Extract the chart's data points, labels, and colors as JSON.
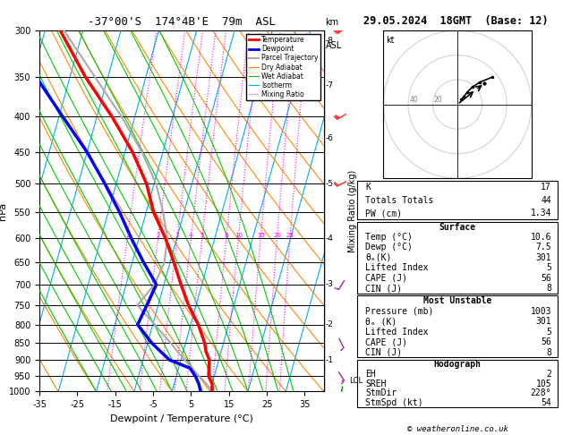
{
  "title_left": "-37°00'S  174°4B'E  79m  ASL",
  "title_right": "29.05.2024  18GMT  (Base: 12)",
  "xlabel": "Dewpoint / Temperature (°C)",
  "ylabel_left": "hPa",
  "bg_color": "#ffffff",
  "temp_color": "#ff0000",
  "dewp_color": "#0000ff",
  "parcel_color": "#aaaaaa",
  "dry_adiabat_color": "#ff8800",
  "wet_adiabat_color": "#00cc00",
  "isotherm_color": "#00aaff",
  "mixing_ratio_color": "#ff00ff",
  "pressure_levels": [
    300,
    350,
    400,
    450,
    500,
    550,
    600,
    650,
    700,
    750,
    800,
    850,
    900,
    950,
    1000
  ],
  "temp_data": [
    [
      1000,
      10.6
    ],
    [
      975,
      10.0
    ],
    [
      950,
      8.5
    ],
    [
      925,
      8.0
    ],
    [
      900,
      7.5
    ],
    [
      875,
      6.0
    ],
    [
      850,
      5.0
    ],
    [
      800,
      2.0
    ],
    [
      750,
      -2.0
    ],
    [
      700,
      -5.5
    ],
    [
      650,
      -9.0
    ],
    [
      600,
      -13.0
    ],
    [
      550,
      -18.0
    ],
    [
      500,
      -22.0
    ],
    [
      450,
      -28.0
    ],
    [
      400,
      -36.0
    ],
    [
      350,
      -46.0
    ],
    [
      300,
      -56.0
    ]
  ],
  "dewp_data": [
    [
      1000,
      7.5
    ],
    [
      975,
      6.5
    ],
    [
      950,
      5.0
    ],
    [
      925,
      3.0
    ],
    [
      900,
      -3.0
    ],
    [
      875,
      -6.0
    ],
    [
      850,
      -9.0
    ],
    [
      800,
      -14.0
    ],
    [
      750,
      -13.0
    ],
    [
      700,
      -12.0
    ],
    [
      650,
      -17.0
    ],
    [
      600,
      -22.0
    ],
    [
      550,
      -27.0
    ],
    [
      500,
      -33.0
    ],
    [
      450,
      -40.0
    ],
    [
      400,
      -49.0
    ],
    [
      350,
      -59.0
    ],
    [
      300,
      -70.0
    ]
  ],
  "parcel_data": [
    [
      1000,
      10.6
    ],
    [
      975,
      8.5
    ],
    [
      965,
      7.5
    ],
    [
      950,
      6.0
    ],
    [
      925,
      3.5
    ],
    [
      900,
      1.0
    ],
    [
      875,
      -1.5
    ],
    [
      850,
      -4.0
    ],
    [
      800,
      -9.5
    ],
    [
      750,
      -15.5
    ],
    [
      700,
      -12.5
    ],
    [
      650,
      -11.5
    ],
    [
      600,
      -12.5
    ],
    [
      550,
      -15.5
    ],
    [
      500,
      -19.5
    ],
    [
      450,
      -25.5
    ],
    [
      400,
      -33.5
    ],
    [
      350,
      -43.5
    ],
    [
      300,
      -55.0
    ]
  ],
  "lcl_pressure": 965,
  "p_min": 300,
  "p_max": 1000,
  "xmin": -35,
  "xmax": 40,
  "skew_factor": 22,
  "isotherms": [
    -60,
    -50,
    -40,
    -30,
    -20,
    -10,
    0,
    10,
    20,
    30,
    40
  ],
  "dry_adiabats_theta": [
    -30,
    -20,
    -10,
    0,
    10,
    20,
    30,
    40,
    50,
    60,
    70,
    80,
    90,
    100,
    110,
    120
  ],
  "wet_adiabat_starts": [
    -20,
    -16,
    -12,
    -8,
    -4,
    0,
    4,
    8,
    12,
    16,
    20,
    24,
    28,
    32
  ],
  "mixing_ratios": [
    1,
    2,
    3,
    4,
    5,
    8,
    10,
    15,
    20,
    25
  ],
  "km_ticks": [
    1,
    2,
    3,
    4,
    5,
    6,
    7,
    8
  ],
  "km_pressures": [
    900,
    800,
    700,
    600,
    500,
    430,
    360,
    310
  ],
  "wind_barbs": [
    {
      "pressure": 300,
      "u": 30,
      "v": 20,
      "color": "#ff4444"
    },
    {
      "pressure": 400,
      "u": 25,
      "v": 15,
      "color": "#ff4444"
    },
    {
      "pressure": 500,
      "u": 20,
      "v": 10,
      "color": "#ff4444"
    },
    {
      "pressure": 700,
      "u": 5,
      "v": 8,
      "color": "#aa44aa"
    },
    {
      "pressure": 850,
      "u": -5,
      "v": 10,
      "color": "#aa44aa"
    },
    {
      "pressure": 950,
      "u": -8,
      "v": 12,
      "color": "#aa44aa"
    },
    {
      "pressure": 1000,
      "u": 3,
      "v": 12,
      "color": "#00aa00"
    }
  ],
  "legend_items": [
    {
      "label": "Temperature",
      "color": "#ff0000",
      "lw": 2.0,
      "ls": "-"
    },
    {
      "label": "Dewpoint",
      "color": "#0000ff",
      "lw": 2.0,
      "ls": "-"
    },
    {
      "label": "Parcel Trajectory",
      "color": "#aaaaaa",
      "lw": 1.5,
      "ls": "-"
    },
    {
      "label": "Dry Adiabat",
      "color": "#ff8800",
      "lw": 0.8,
      "ls": "-"
    },
    {
      "label": "Wet Adiabat",
      "color": "#00cc00",
      "lw": 0.8,
      "ls": "-"
    },
    {
      "label": "Isotherm",
      "color": "#00aaff",
      "lw": 0.8,
      "ls": "-"
    },
    {
      "label": "Mixing Ratio",
      "color": "#ff00ff",
      "lw": 0.8,
      "ls": ":"
    }
  ],
  "table_data": {
    "K": "17",
    "Totals Totals": "44",
    "PW (cm)": "1.34",
    "Surface_Temp": "10.6",
    "Surface_Dewp": "7.5",
    "Surface_theta_e": "301",
    "Surface_LI": "5",
    "Surface_CAPE": "56",
    "Surface_CIN": "8",
    "MU_Pressure": "1003",
    "MU_theta_e": "301",
    "MU_LI": "5",
    "MU_CAPE": "56",
    "MU_CIN": "8",
    "Hodo_EH": "2",
    "Hodo_SREH": "105",
    "Hodo_StmDir": "228°",
    "Hodo_StmSpd": "54"
  },
  "hodo_u": [
    3,
    5,
    8,
    12,
    18,
    28
  ],
  "hodo_v": [
    4,
    6,
    10,
    14,
    18,
    22
  ],
  "hodo_storm_u": [
    15,
    22
  ],
  "hodo_storm_v": [
    12,
    17
  ]
}
